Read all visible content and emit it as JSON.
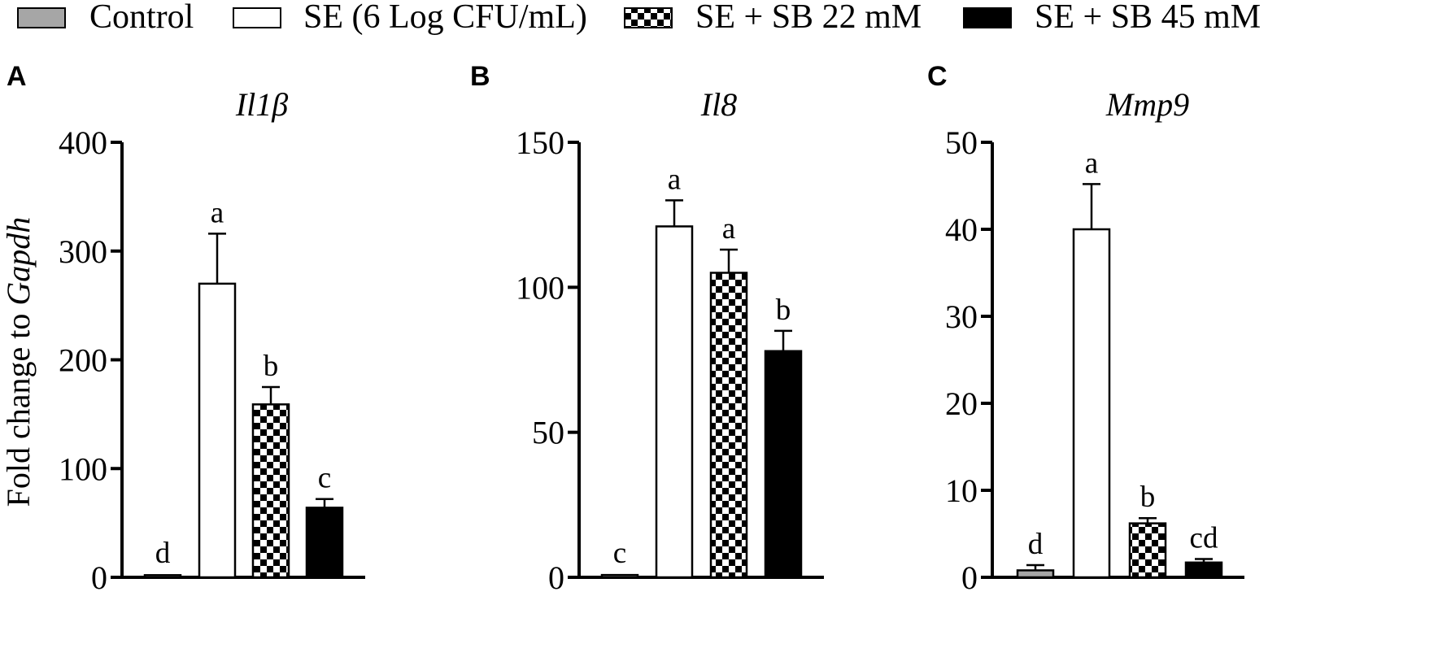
{
  "legend": [
    {
      "label": "Control",
      "pattern": "gray"
    },
    {
      "label": "SE (6 Log CFU/mL)",
      "pattern": "white"
    },
    {
      "label": "SE + SB 22 mM",
      "pattern": "checker"
    },
    {
      "label": "SE + SB 45 mM",
      "pattern": "black"
    }
  ],
  "ylabel_prefix": "Fold change to ",
  "ylabel_gene": "Gapdh",
  "colors": {
    "control": "#a6a6a6",
    "white": "#ffffff",
    "black": "#000000",
    "stroke": "#000000"
  },
  "chart_data": [
    {
      "type": "bar",
      "panel": "A",
      "title": "Il1β",
      "categories": [
        "Control",
        "SE (6 Log CFU/mL)",
        "SE + SB 22 mM",
        "SE + SB 45 mM"
      ],
      "values": [
        2,
        270,
        159,
        64
      ],
      "errors": [
        1,
        46,
        16,
        8
      ],
      "significance": [
        "d",
        "a",
        "b",
        "c"
      ],
      "ylim": [
        0,
        400
      ],
      "yticks": [
        0,
        100,
        200,
        300,
        400
      ]
    },
    {
      "type": "bar",
      "panel": "B",
      "title": "Il8",
      "categories": [
        "Control",
        "SE (6 Log CFU/mL)",
        "SE + SB 22 mM",
        "SE + SB 45 mM"
      ],
      "values": [
        0.8,
        121,
        105,
        78
      ],
      "errors": [
        0.3,
        9,
        8,
        7
      ],
      "significance": [
        "c",
        "a",
        "a",
        "b"
      ],
      "ylim": [
        0,
        150
      ],
      "yticks": [
        0,
        50,
        100,
        150
      ]
    },
    {
      "type": "bar",
      "panel": "C",
      "title": "Mmp9",
      "categories": [
        "Control",
        "SE (6 Log CFU/mL)",
        "SE + SB 22 mM",
        "SE + SB 45 mM"
      ],
      "values": [
        0.8,
        40,
        6.2,
        1.7
      ],
      "errors": [
        0.6,
        5.2,
        0.6,
        0.4
      ],
      "significance": [
        "d",
        "a",
        "b",
        "cd"
      ],
      "ylim": [
        0,
        50
      ],
      "yticks": [
        0,
        10,
        20,
        30,
        40,
        50
      ]
    }
  ]
}
